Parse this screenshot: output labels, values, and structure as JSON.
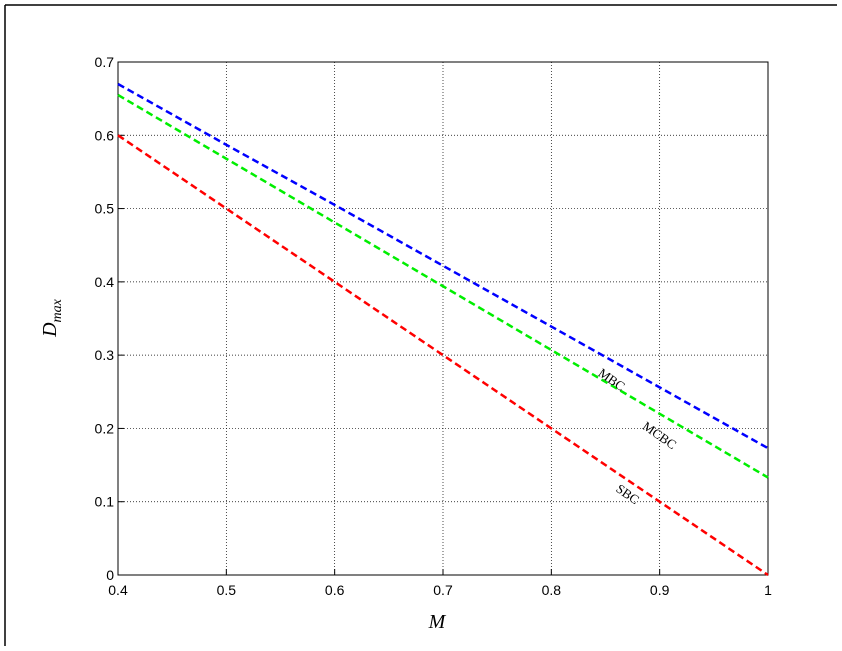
{
  "chart_data": {
    "type": "line",
    "xlabel": "M",
    "ylabel": "D",
    "ylabel_sub": "max",
    "x": [
      0.4,
      0.5,
      0.6,
      0.7,
      0.8,
      0.9,
      1
    ],
    "series": [
      {
        "name": "MBC",
        "color": "#0000ff",
        "values": [
          0.67,
          0.587,
          0.505,
          0.422,
          0.339,
          0.256,
          0.173
        ]
      },
      {
        "name": "MCBC",
        "color": "#00ee00",
        "values": [
          0.655,
          0.568,
          0.481,
          0.394,
          0.307,
          0.22,
          0.133
        ]
      },
      {
        "name": "SBC",
        "color": "#ff0000",
        "values": [
          0.6,
          0.5,
          0.4,
          0.3,
          0.2,
          0.1,
          0
        ]
      }
    ],
    "xlim": [
      0.4,
      1
    ],
    "xticks": [
      0.4,
      0.5,
      0.6,
      0.7,
      0.8,
      0.9,
      1
    ],
    "ylim": [
      0,
      0.7
    ],
    "yticks": [
      0,
      0.1,
      0.2,
      0.3,
      0.4,
      0.5,
      0.6,
      0.7
    ],
    "grid": true,
    "dashed": true
  }
}
